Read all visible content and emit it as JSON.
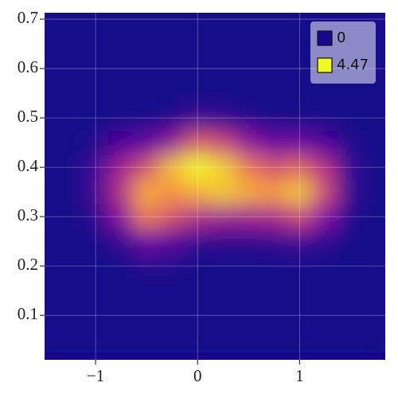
{
  "chart_data": {
    "type": "heatmap",
    "x": [
      -1.5,
      -1.25,
      -1,
      -0.75,
      -0.5,
      -0.25,
      0,
      0.25,
      0.5,
      0.75,
      1,
      1.25,
      1.5,
      1.75
    ],
    "y": [
      0.05,
      0.1,
      0.15,
      0.2,
      0.25,
      0.3,
      0.35,
      0.4,
      0.45,
      0.5,
      0.55,
      0.6,
      0.65,
      0.7
    ],
    "z": [
      [
        0,
        0,
        0,
        0,
        0,
        0,
        0,
        0,
        0,
        0,
        0,
        0,
        0,
        0
      ],
      [
        0,
        0,
        0,
        0,
        0,
        0,
        0,
        0,
        0,
        0,
        0,
        0,
        0,
        0
      ],
      [
        0,
        0,
        0,
        0,
        0,
        0,
        0,
        0,
        0,
        0,
        0,
        0,
        0,
        0
      ],
      [
        0,
        0,
        0,
        0,
        0.1,
        0.1,
        0,
        0,
        0,
        0,
        0,
        0,
        0,
        0
      ],
      [
        0,
        0,
        0,
        0.3,
        0.9,
        0.7,
        0.3,
        0.2,
        0.2,
        0.3,
        0.4,
        0.2,
        0,
        0
      ],
      [
        0,
        0,
        0.2,
        1.3,
        3.0,
        2.4,
        1.8,
        1.6,
        1.6,
        1.7,
        2.2,
        1.2,
        0.1,
        0
      ],
      [
        0,
        0,
        0.4,
        1.9,
        3.6,
        3.3,
        3.6,
        3.9,
        3.6,
        3.4,
        3.9,
        2.3,
        0.3,
        0
      ],
      [
        0,
        0,
        0.4,
        1.6,
        2.4,
        3.8,
        4.47,
        4.0,
        3.0,
        2.4,
        2.7,
        1.9,
        0.3,
        0
      ],
      [
        0,
        0,
        0.1,
        0.6,
        0.8,
        1.4,
        2.6,
        2.2,
        1.4,
        0.9,
        0.9,
        0.6,
        0.1,
        0
      ],
      [
        0,
        0,
        0,
        0,
        0,
        0.1,
        0.4,
        0.3,
        0.1,
        0,
        0,
        0,
        0,
        0
      ],
      [
        0,
        0,
        0,
        0,
        0,
        0,
        0,
        0,
        0,
        0,
        0,
        0,
        0,
        0
      ],
      [
        0,
        0,
        0,
        0,
        0,
        0,
        0,
        0,
        0,
        0,
        0,
        0,
        0,
        0
      ],
      [
        0,
        0,
        0,
        0,
        0,
        0,
        0,
        0,
        0,
        0,
        0,
        0,
        0,
        0
      ],
      [
        0,
        0,
        0,
        0,
        0,
        0,
        0,
        0,
        0,
        0,
        0,
        0,
        0,
        0
      ]
    ],
    "colorbar": {
      "values": [
        0,
        4.47
      ]
    },
    "colormap": [
      "#170a8a",
      "#7e03a8",
      "#cc4778",
      "#f89540",
      "#f0f921"
    ],
    "xlim": [
      -1.5,
      1.84
    ],
    "ylim": [
      0.01,
      0.713
    ],
    "xticks": [
      {
        "value": -1,
        "label": "−1"
      },
      0,
      1
    ],
    "yticks": [
      0.1,
      0.2,
      0.3,
      0.4,
      0.5,
      0.6,
      0.7
    ],
    "grid": true
  }
}
